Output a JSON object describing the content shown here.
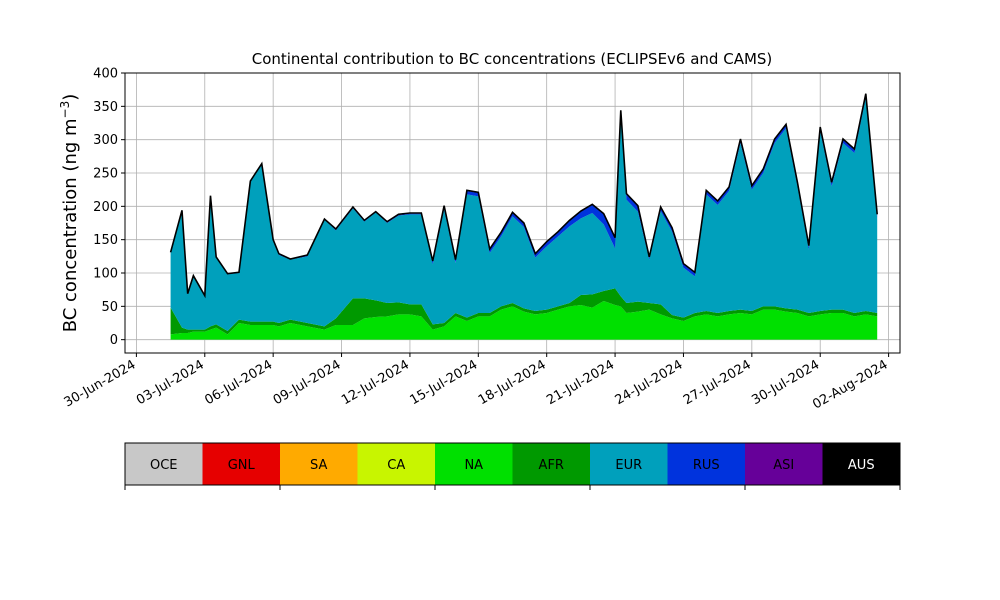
{
  "chart_data": {
    "type": "area",
    "stacked": true,
    "title": "Continental contribution to BC concentrations (ECLIPSEv6 and CAMS)",
    "ylabel": "BC concentration (ng m",
    "ylabel_superscript": "−3",
    "ylabel_close": ")",
    "ylim": [
      -20,
      400
    ],
    "yticks": [
      0,
      50,
      100,
      150,
      200,
      250,
      300,
      350,
      400
    ],
    "xlim": [
      "2024-06-29T12:00",
      "2024-08-02T12:00"
    ],
    "xticks": [
      "2024-06-30",
      "2024-07-03",
      "2024-07-06",
      "2024-07-09",
      "2024-07-12",
      "2024-07-15",
      "2024-07-18",
      "2024-07-21",
      "2024-07-24",
      "2024-07-27",
      "2024-07-30",
      "2024-08-02"
    ],
    "xticklabels": [
      "30-Jun-2024",
      "03-Jul-2024",
      "06-Jul-2024",
      "09-Jul-2024",
      "12-Jul-2024",
      "15-Jul-2024",
      "18-Jul-2024",
      "21-Jul-2024",
      "24-Jul-2024",
      "27-Jul-2024",
      "30-Jul-2024",
      "02-Aug-2024"
    ],
    "grid": true,
    "legend_placement": "bottom colorbar",
    "x": [
      "2024-07-01T12:00",
      "2024-07-02T00:00",
      "2024-07-02T06:00",
      "2024-07-02T12:00",
      "2024-07-03T00:00",
      "2024-07-03T06:00",
      "2024-07-03T12:00",
      "2024-07-04T00:00",
      "2024-07-04T12:00",
      "2024-07-05T00:00",
      "2024-07-05T12:00",
      "2024-07-06T00:00",
      "2024-07-06T06:00",
      "2024-07-06T18:00",
      "2024-07-07T12:00",
      "2024-07-08T06:00",
      "2024-07-08T18:00",
      "2024-07-09T12:00",
      "2024-07-10T00:00",
      "2024-07-10T12:00",
      "2024-07-11T00:00",
      "2024-07-11T12:00",
      "2024-07-12T00:00",
      "2024-07-12T12:00",
      "2024-07-13T00:00",
      "2024-07-13T12:00",
      "2024-07-14T00:00",
      "2024-07-14T12:00",
      "2024-07-15T00:00",
      "2024-07-15T12:00",
      "2024-07-16T00:00",
      "2024-07-16T12:00",
      "2024-07-17T00:00",
      "2024-07-17T12:00",
      "2024-07-18T00:00",
      "2024-07-18T12:00",
      "2024-07-19T00:00",
      "2024-07-19T12:00",
      "2024-07-20T00:00",
      "2024-07-20T12:00",
      "2024-07-21T00:00",
      "2024-07-21T06:00",
      "2024-07-21T12:00",
      "2024-07-22T00:00",
      "2024-07-22T12:00",
      "2024-07-23T00:00",
      "2024-07-23T12:00",
      "2024-07-24T00:00",
      "2024-07-24T12:00",
      "2024-07-25T00:00",
      "2024-07-25T12:00",
      "2024-07-26T00:00",
      "2024-07-26T12:00",
      "2024-07-27T00:00",
      "2024-07-27T12:00",
      "2024-07-28T00:00",
      "2024-07-28T12:00",
      "2024-07-29T00:00",
      "2024-07-29T12:00",
      "2024-07-30T00:00",
      "2024-07-30T12:00",
      "2024-07-31T00:00",
      "2024-07-31T12:00",
      "2024-08-01T00:00",
      "2024-08-01T12:00"
    ],
    "series": [
      {
        "name": "OCE",
        "color": "#c8c8c8",
        "values": [
          0,
          0,
          0,
          0,
          0,
          0,
          0,
          0,
          0,
          0,
          0,
          0,
          0,
          0,
          0,
          0,
          0,
          0,
          0,
          0,
          0,
          0,
          0,
          0,
          0,
          0,
          0,
          0,
          0,
          0,
          0,
          0,
          0,
          0,
          0,
          0,
          0,
          0,
          0,
          0,
          0,
          0,
          0,
          0,
          0,
          0,
          0,
          0,
          0,
          0,
          0,
          0,
          0,
          0,
          0,
          0,
          0,
          0,
          0,
          0,
          0,
          0,
          0,
          0,
          0
        ]
      },
      {
        "name": "GNL",
        "color": "#e60000",
        "values": [
          0,
          0,
          0,
          0,
          0,
          0,
          0,
          0,
          0,
          0,
          0,
          0,
          0,
          0,
          0,
          0,
          0,
          0,
          0,
          0,
          0,
          0,
          0,
          0,
          0,
          0,
          0,
          0,
          0,
          0,
          0,
          0,
          0,
          0,
          0,
          0,
          0,
          0,
          0,
          0,
          0,
          0,
          0,
          0,
          0,
          0,
          0,
          0,
          0,
          0,
          0,
          0,
          0,
          0,
          0,
          0,
          0,
          0,
          0,
          0,
          0,
          0,
          0,
          0,
          0
        ]
      },
      {
        "name": "SA",
        "color": "#ffaa00",
        "values": [
          0,
          0,
          0,
          0,
          0,
          0,
          0,
          0,
          0,
          0,
          0,
          0,
          0,
          0,
          0,
          0,
          0,
          0,
          0,
          0,
          0,
          0,
          0,
          0,
          0,
          0,
          0,
          0,
          0,
          0,
          0,
          0,
          0,
          0,
          0,
          0,
          0,
          0,
          0,
          0,
          0,
          0,
          0,
          0,
          0,
          0,
          0,
          0,
          0,
          0,
          0,
          0,
          0,
          0,
          0,
          0,
          0,
          0,
          0,
          0,
          0,
          0,
          0,
          0,
          0
        ]
      },
      {
        "name": "CA",
        "color": "#c8f500",
        "values": [
          0,
          0,
          0,
          0,
          0,
          0,
          0,
          0,
          0,
          0,
          0,
          0,
          0,
          0,
          0,
          0,
          0,
          0,
          0,
          0,
          0,
          0,
          0,
          0,
          0,
          0,
          0,
          0,
          0,
          0,
          0,
          0,
          0,
          0,
          0,
          0,
          0,
          0,
          0,
          0,
          0,
          0,
          0,
          0,
          0,
          0,
          0,
          0,
          0,
          0,
          0,
          0,
          0,
          0,
          0,
          0,
          0,
          0,
          0,
          0,
          0,
          0,
          0,
          0,
          0
        ]
      },
      {
        "name": "NA",
        "color": "#00e000",
        "values": [
          8,
          10,
          10,
          12,
          12,
          15,
          18,
          8,
          25,
          22,
          22,
          22,
          20,
          25,
          20,
          15,
          22,
          22,
          32,
          34,
          35,
          38,
          38,
          35,
          15,
          20,
          35,
          28,
          35,
          35,
          45,
          50,
          42,
          38,
          40,
          45,
          50,
          52,
          48,
          58,
          52,
          50,
          40,
          42,
          45,
          38,
          32,
          28,
          35,
          38,
          35,
          38,
          40,
          38,
          45,
          45,
          42,
          40,
          35,
          38,
          40,
          40,
          35,
          38,
          35
        ]
      },
      {
        "name": "AFR",
        "color": "#009900",
        "values": [
          40,
          8,
          5,
          3,
          3,
          5,
          5,
          5,
          5,
          5,
          5,
          5,
          5,
          5,
          5,
          5,
          10,
          40,
          30,
          25,
          20,
          18,
          15,
          18,
          8,
          5,
          5,
          5,
          5,
          5,
          5,
          5,
          5,
          5,
          5,
          5,
          5,
          15,
          20,
          15,
          25,
          15,
          15,
          15,
          10,
          15,
          5,
          5,
          5,
          5,
          5,
          5,
          5,
          5,
          5,
          5,
          5,
          5,
          5,
          5,
          5,
          5,
          5,
          5,
          5
        ]
      },
      {
        "name": "EUR",
        "color": "#00a0bc",
        "values": [
          82,
          175,
          53,
          80,
          50,
          195,
          100,
          85,
          70,
          210,
          235,
          122,
          102,
          90,
          100,
          160,
          132,
          135,
          115,
          132,
          120,
          130,
          135,
          135,
          90,
          170,
          75,
          185,
          175,
          90,
          105,
          130,
          122,
          80,
          95,
          105,
          115,
          115,
          122,
          100,
          60,
          270,
          155,
          135,
          65,
          140,
          125,
          75,
          55,
          175,
          162,
          180,
          250,
          182,
          200,
          245,
          270,
          185,
          95,
          270,
          185,
          250,
          240,
          320,
          142
        ]
      },
      {
        "name": "RUS",
        "color": "#0033dd",
        "values": [
          1,
          1,
          1,
          1,
          1,
          1,
          1,
          1,
          1,
          1,
          1,
          1,
          1,
          1,
          1,
          1,
          1,
          1,
          1,
          1,
          1,
          1,
          1,
          1,
          5,
          5,
          5,
          5,
          5,
          5,
          5,
          5,
          5,
          5,
          6,
          6,
          8,
          10,
          12,
          15,
          15,
          8,
          8,
          8,
          3,
          5,
          5,
          5,
          5,
          5,
          5,
          5,
          5,
          5,
          5,
          5,
          5,
          5,
          5,
          5,
          5,
          5,
          5,
          5,
          5
        ]
      },
      {
        "name": "ASI",
        "color": "#660099",
        "values": [
          0,
          0,
          0,
          0,
          0,
          0,
          0,
          0,
          0,
          0,
          0,
          0,
          0,
          0,
          0,
          0,
          0,
          0,
          0,
          0,
          0,
          0,
          0,
          0,
          0,
          0,
          0,
          0,
          0,
          0,
          0,
          0,
          0,
          0,
          0,
          0,
          0,
          0,
          0,
          0,
          0,
          0,
          0,
          0,
          0,
          0,
          0,
          0,
          0,
          0,
          0,
          0,
          0,
          0,
          0,
          0,
          0,
          0,
          0,
          0,
          0,
          0,
          0,
          0,
          0
        ]
      },
      {
        "name": "AUS",
        "color": "#000000",
        "values": [
          0,
          0,
          0,
          0,
          0,
          0,
          0,
          0,
          0,
          0,
          0,
          0,
          0,
          0,
          0,
          0,
          0,
          0,
          0,
          0,
          0,
          0,
          0,
          0,
          0,
          0,
          0,
          0,
          0,
          0,
          0,
          0,
          0,
          0,
          0,
          0,
          0,
          0,
          0,
          0,
          0,
          0,
          0,
          0,
          0,
          0,
          0,
          0,
          0,
          0,
          0,
          0,
          0,
          0,
          0,
          0,
          0,
          0,
          0,
          0,
          0,
          0,
          0,
          0,
          0
        ]
      }
    ],
    "total": [
      131,
      194,
      69,
      96,
      66,
      216,
      124,
      99,
      101,
      238,
      264,
      150,
      129,
      121,
      127,
      181,
      166,
      199,
      179,
      192,
      177,
      188,
      190,
      190,
      118,
      201,
      120,
      224,
      221,
      136,
      161,
      191,
      175,
      129,
      147,
      162,
      179,
      193,
      203,
      189,
      153,
      344,
      219,
      201,
      124,
      199,
      168,
      114,
      101,
      224,
      208,
      229,
      301,
      231,
      256,
      301,
      323,
      236,
      141,
      319,
      236,
      301,
      286,
      369,
      188
    ]
  }
}
